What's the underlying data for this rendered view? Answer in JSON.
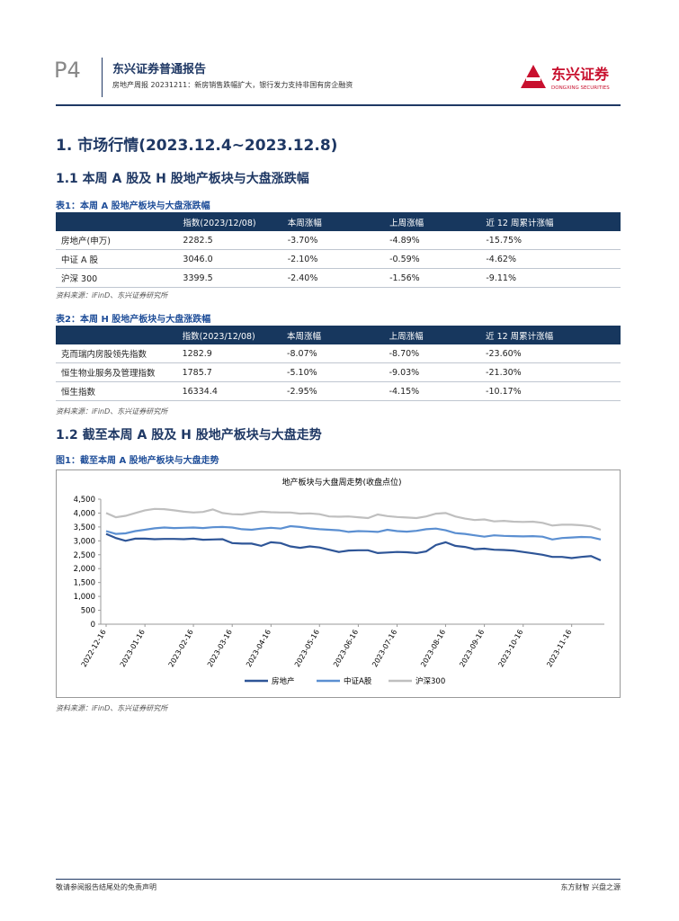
{
  "header": {
    "page": "P4",
    "report_type": "东兴证券普通报告",
    "subtitle": "房地产周报 20231211：新房销售跌幅扩大，银行发力支持非国有房企融资",
    "logo_name": "东兴证券",
    "logo_en": "DONGXING SECURITIES"
  },
  "section_title": "1. 市场行情(2023.12.4~2023.12.8)",
  "subsection_1": "1.1 本周 A 股及 H 股地产板块与大盘涨跌幅",
  "table1": {
    "caption": "表1：本周 A 股地产板块与大盘涨跌幅",
    "columns": [
      "指数(2023/12/08)",
      "本周涨幅",
      "上周涨幅",
      "近 12 周累计涨幅"
    ],
    "rows": [
      [
        "房地产(申万)",
        "2282.5",
        "-3.70%",
        "-4.89%",
        "-15.75%"
      ],
      [
        "中证 A 股",
        "3046.0",
        "-2.10%",
        "-0.59%",
        "-4.62%"
      ],
      [
        "沪深 300",
        "3399.5",
        "-2.40%",
        "-1.56%",
        "-9.11%"
      ]
    ],
    "source": "资料来源：iFinD、东兴证券研究所"
  },
  "table2": {
    "caption": "表2：本周 H 股地产板块与大盘涨跌幅",
    "columns": [
      "指数(2023/12/08)",
      "本周涨幅",
      "上周涨幅",
      "近 12 周累计涨幅"
    ],
    "rows": [
      [
        "克而瑞内房股领先指数",
        "1282.9",
        "-8.07%",
        "-8.70%",
        "-23.60%"
      ],
      [
        "恒生物业服务及管理指数",
        "1785.7",
        "-5.10%",
        "-9.03%",
        "-21.30%"
      ],
      [
        "恒生指数",
        "16334.4",
        "-2.95%",
        "-4.15%",
        "-10.17%"
      ]
    ],
    "source": "资料来源：iFinD、东兴证券研究所"
  },
  "subsection_2": "1.2 截至本周 A 股及 H 股地产板块与大盘走势",
  "figure1": {
    "caption": "图1：截至本周 A 股地产板块与大盘走势",
    "source": "资料来源：iFinD、东兴证券研究所"
  },
  "chart_data": {
    "type": "line",
    "title": "地产板块与大盘周走势(收盘点位)",
    "categories": [
      "2022-12-16",
      null,
      null,
      null,
      "2023-01-16",
      null,
      null,
      null,
      null,
      "2023-02-16",
      null,
      null,
      null,
      "2023-03-16",
      null,
      null,
      null,
      "2023-04-16",
      null,
      null,
      null,
      null,
      "2023-05-16",
      null,
      null,
      null,
      "2023-06-16",
      null,
      null,
      null,
      "2023-07-16",
      null,
      null,
      null,
      null,
      "2023-08-16",
      null,
      null,
      null,
      "2023-09-16",
      null,
      null,
      null,
      "2023-10-16",
      null,
      null,
      null,
      null,
      "2023-11-16",
      null,
      null,
      null
    ],
    "series": [
      {
        "name": "房地产",
        "color": "#2e5597",
        "values": [
          3250,
          3100,
          3000,
          3080,
          3080,
          3060,
          3070,
          3070,
          3060,
          3080,
          3040,
          3050,
          3060,
          2920,
          2900,
          2900,
          2820,
          2950,
          2920,
          2800,
          2750,
          2800,
          2760,
          2680,
          2600,
          2650,
          2660,
          2660,
          2560,
          2580,
          2600,
          2590,
          2560,
          2620,
          2850,
          2950,
          2820,
          2780,
          2700,
          2720,
          2680,
          2670,
          2650,
          2600,
          2550,
          2500,
          2420,
          2420,
          2380,
          2420,
          2450,
          2300
        ]
      },
      {
        "name": "中证A股",
        "color": "#5b8fd1",
        "values": [
          3350,
          3250,
          3270,
          3350,
          3400,
          3450,
          3480,
          3460,
          3470,
          3480,
          3460,
          3490,
          3500,
          3480,
          3420,
          3400,
          3440,
          3470,
          3440,
          3530,
          3500,
          3450,
          3420,
          3400,
          3380,
          3320,
          3350,
          3340,
          3320,
          3400,
          3350,
          3330,
          3360,
          3420,
          3440,
          3380,
          3280,
          3250,
          3200,
          3150,
          3200,
          3180,
          3170,
          3160,
          3170,
          3150,
          3050,
          3100,
          3120,
          3140,
          3130,
          3050
        ]
      },
      {
        "name": "沪深300",
        "color": "#bfbfbf",
        "values": [
          4000,
          3850,
          3900,
          4000,
          4100,
          4150,
          4140,
          4100,
          4050,
          4020,
          4040,
          4130,
          4000,
          3960,
          3950,
          4000,
          4050,
          4030,
          4020,
          4020,
          3980,
          3990,
          3960,
          3880,
          3870,
          3880,
          3850,
          3820,
          3950,
          3890,
          3860,
          3840,
          3820,
          3880,
          3980,
          4000,
          3880,
          3800,
          3750,
          3770,
          3700,
          3720,
          3690,
          3680,
          3690,
          3650,
          3550,
          3580,
          3580,
          3560,
          3520,
          3400
        ]
      }
    ],
    "ylim": [
      0,
      4500
    ],
    "yticks": [
      0,
      500,
      {
        "value": 1000,
        "label": "1,000"
      },
      {
        "value": 1500,
        "label": "1,500"
      },
      {
        "value": 2000,
        "label": "2,000"
      },
      {
        "value": 2500,
        "label": "2,500"
      },
      {
        "value": 3000,
        "label": "3,000"
      },
      {
        "value": 3500,
        "label": "3,500"
      },
      {
        "value": 4000,
        "label": "4,000"
      },
      {
        "value": 4500,
        "label": "4,500"
      }
    ],
    "legend": "bottom"
  },
  "footer": {
    "left": "敬请参阅报告结尾处的免责声明",
    "right": "东方财智 兴盘之源"
  }
}
